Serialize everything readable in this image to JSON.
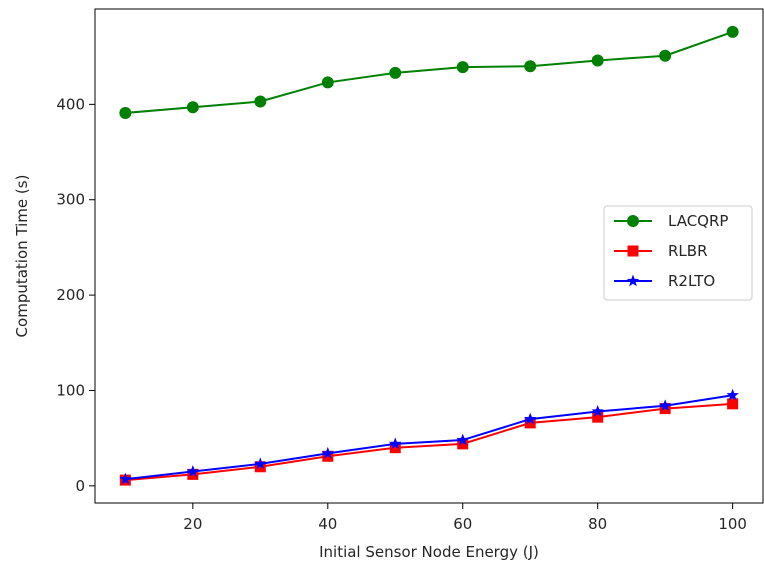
{
  "chart_data": {
    "type": "line",
    "title": "",
    "xlabel": "Initial Sensor Node Energy (J)",
    "ylabel": "Computation Time (s)",
    "x": [
      10,
      20,
      30,
      40,
      50,
      60,
      70,
      80,
      90,
      100
    ],
    "xlim": [
      5.5,
      104.5
    ],
    "ylim": [
      -18,
      500
    ],
    "xticks": [
      20,
      40,
      60,
      80,
      100
    ],
    "yticks": [
      0,
      100,
      200,
      300,
      400
    ],
    "grid": false,
    "legend_position": "center-right",
    "series": [
      {
        "name": "LACQRP",
        "color": "#008000",
        "marker": "circle",
        "values": [
          391,
          397,
          403,
          423,
          433,
          439,
          440,
          446,
          451,
          476
        ]
      },
      {
        "name": "RLBR",
        "color": "#ff0000",
        "marker": "square",
        "values": [
          6,
          12,
          20,
          31,
          40,
          44,
          66,
          72,
          81,
          86
        ]
      },
      {
        "name": "R2LTO",
        "color": "#0000ff",
        "marker": "star",
        "values": [
          7,
          15,
          23,
          34,
          44,
          48,
          70,
          78,
          84,
          95
        ]
      }
    ]
  }
}
